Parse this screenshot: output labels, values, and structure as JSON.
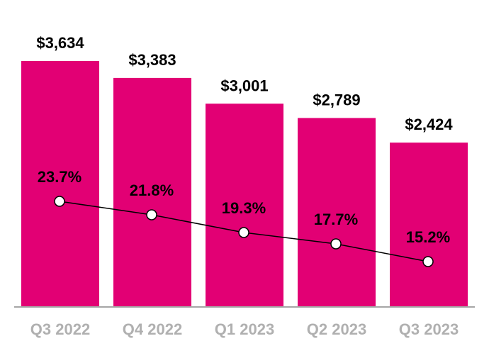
{
  "chart_data": {
    "type": "bar",
    "categories": [
      "Q3 2022",
      "Q4 2022",
      "Q1 2023",
      "Q2 2023",
      "Q3 2023"
    ],
    "series": [
      {
        "type": "bar",
        "values": [
          3634,
          3383,
          3001,
          2789,
          2424
        ],
        "labels": [
          "$3,634",
          "$3,383",
          "$3,001",
          "$2,789",
          "$2,424"
        ],
        "color": "#E20074"
      },
      {
        "type": "line",
        "values": [
          23.7,
          21.8,
          19.3,
          17.7,
          15.2
        ],
        "labels": [
          "23.7%",
          "21.8%",
          "19.3%",
          "17.7%",
          "15.2%"
        ],
        "color": "#000000"
      }
    ],
    "title": "",
    "xlabel": "",
    "ylabel": "",
    "ylim": [
      0,
      3634
    ],
    "grid": false,
    "legend": "none",
    "tick_label_color": "#B0B0B0",
    "axis_color": "#A6A6A6"
  }
}
